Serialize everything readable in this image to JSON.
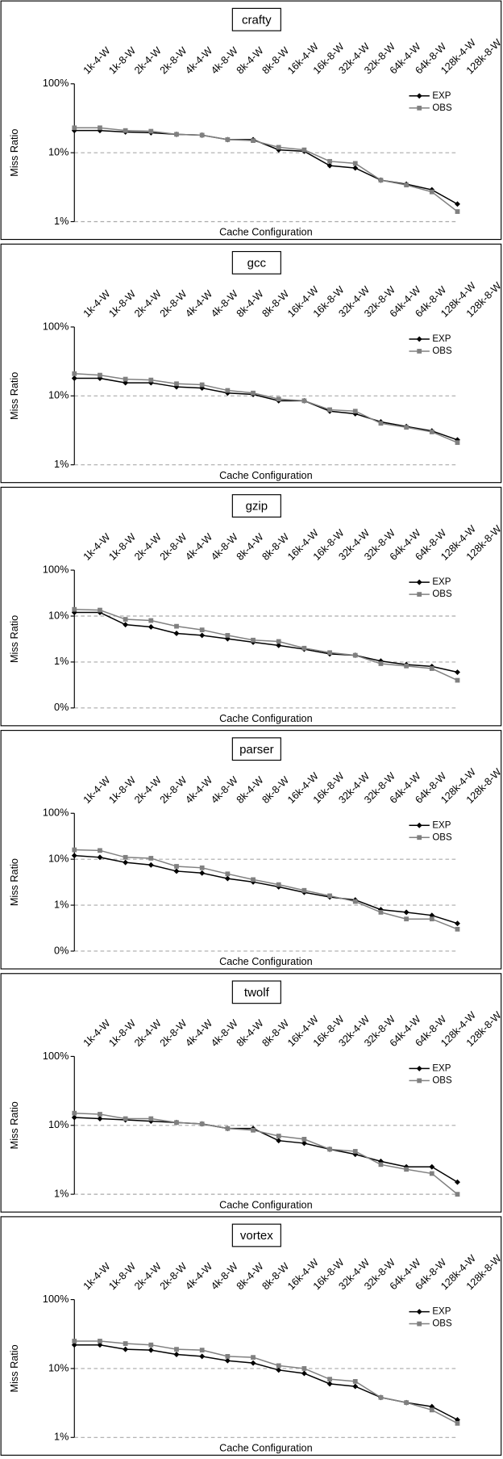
{
  "chart_data": [
    {
      "type": "line",
      "title": "crafty",
      "xlabel": "Cache Configuration",
      "ylabel": "Miss Ratio",
      "log_scale": true,
      "grid": true,
      "legend": "upper right",
      "categories": [
        "1k-4-W",
        "1k-8-W",
        "2k-4-W",
        "2k-8-W",
        "4k-4-W",
        "4k-8-W",
        "8k-4-W",
        "8k-8-W",
        "16k-4-W",
        "16k-8-W",
        "32k-4-W",
        "32k-8-W",
        "64k-4-W",
        "64k-8-W",
        "128k-4-W",
        "128k-8-W"
      ],
      "ylim": [
        1,
        100
      ],
      "yticks": [
        {
          "value": 1,
          "label": "1%"
        },
        {
          "value": 10,
          "label": "10%"
        },
        {
          "value": 100,
          "label": "100%"
        }
      ],
      "series": [
        {
          "name": "EXP",
          "color": "#000000",
          "values": [
            21,
            21,
            20,
            19.5,
            18.5,
            18,
            15.5,
            15.5,
            11,
            10.5,
            6.5,
            6,
            4,
            3.5,
            2.9,
            1.8
          ]
        },
        {
          "name": "OBS",
          "color": "#808080",
          "values": [
            23,
            23,
            21,
            20.5,
            18.5,
            18,
            15.5,
            15,
            12,
            11,
            7.5,
            7,
            4,
            3.4,
            2.7,
            1.4
          ]
        }
      ]
    },
    {
      "type": "line",
      "title": "gcc",
      "xlabel": "Cache Configuration",
      "ylabel": "Miss Ratio",
      "log_scale": true,
      "grid": true,
      "legend": "upper right",
      "categories": [
        "1k-4-W",
        "1k-8-W",
        "2k-4-W",
        "2k-8-W",
        "4k-4-W",
        "4k-8-W",
        "8k-4-W",
        "8k-8-W",
        "16k-4-W",
        "16k-8-W",
        "32k-4-W",
        "32k-8-W",
        "64k-4-W",
        "64k-8-W",
        "128k-4-W",
        "128k-8-W"
      ],
      "ylim": [
        1,
        100
      ],
      "yticks": [
        {
          "value": 1,
          "label": "1%"
        },
        {
          "value": 10,
          "label": "10%"
        },
        {
          "value": 100,
          "label": "100%"
        }
      ],
      "series": [
        {
          "name": "EXP",
          "color": "#000000",
          "values": [
            18,
            18,
            15.5,
            15.5,
            13.5,
            13,
            11,
            10.5,
            8.5,
            8.5,
            6,
            5.5,
            4.2,
            3.6,
            3.1,
            2.3
          ]
        },
        {
          "name": "OBS",
          "color": "#808080",
          "values": [
            21,
            20,
            17.5,
            17,
            15,
            14.5,
            12,
            11,
            9,
            8.5,
            6.3,
            6,
            4,
            3.5,
            3,
            2.1
          ]
        }
      ]
    },
    {
      "type": "line",
      "title": "gzip",
      "xlabel": "Cache Configuration",
      "ylabel": "Miss Ratio",
      "log_scale": true,
      "grid": true,
      "legend": "upper right",
      "categories": [
        "1k-4-W",
        "1k-8-W",
        "2k-4-W",
        "2k-8-W",
        "4k-4-W",
        "4k-8-W",
        "8k-4-W",
        "8k-8-W",
        "16k-4-W",
        "16k-8-W",
        "32k-4-W",
        "32k-8-W",
        "64k-4-W",
        "64k-8-W",
        "128k-4-W",
        "128k-8-W"
      ],
      "ylim": [
        0.1,
        100
      ],
      "yticks": [
        {
          "value": 0.1,
          "label": "0%"
        },
        {
          "value": 1,
          "label": "1%"
        },
        {
          "value": 10,
          "label": "10%"
        },
        {
          "value": 100,
          "label": "100%"
        }
      ],
      "series": [
        {
          "name": "EXP",
          "color": "#000000",
          "values": [
            12,
            12,
            6.5,
            5.8,
            4.2,
            3.8,
            3.2,
            2.7,
            2.3,
            1.9,
            1.5,
            1.4,
            1.05,
            0.88,
            0.8,
            0.6
          ]
        },
        {
          "name": "OBS",
          "color": "#808080",
          "values": [
            14,
            13.5,
            8.5,
            8,
            6,
            5,
            3.8,
            3,
            2.8,
            2,
            1.6,
            1.4,
            0.92,
            0.82,
            0.72,
            0.4
          ]
        }
      ]
    },
    {
      "type": "line",
      "title": "parser",
      "xlabel": "Cache Configuration",
      "ylabel": "Miss Ratio",
      "log_scale": true,
      "grid": true,
      "legend": "upper right",
      "categories": [
        "1k-4-W",
        "1k-8-W",
        "2k-4-W",
        "2k-8-W",
        "4k-4-W",
        "4k-8-W",
        "8k-4-W",
        "8k-8-W",
        "16k-4-W",
        "16k-8-W",
        "32k-4-W",
        "32k-8-W",
        "64k-4-W",
        "64k-8-W",
        "128k-4-W",
        "128k-8-W"
      ],
      "ylim": [
        0.1,
        100
      ],
      "yticks": [
        {
          "value": 0.1,
          "label": "0%"
        },
        {
          "value": 1,
          "label": "1%"
        },
        {
          "value": 10,
          "label": "10%"
        },
        {
          "value": 100,
          "label": "100%"
        }
      ],
      "series": [
        {
          "name": "EXP",
          "color": "#000000",
          "values": [
            12,
            11,
            8.5,
            7.5,
            5.5,
            5,
            3.8,
            3.2,
            2.5,
            1.9,
            1.5,
            1.3,
            0.8,
            0.7,
            0.6,
            0.4
          ]
        },
        {
          "name": "OBS",
          "color": "#808080",
          "values": [
            16,
            15.5,
            11,
            10.5,
            7,
            6.5,
            4.8,
            3.6,
            2.8,
            2.1,
            1.6,
            1.2,
            0.7,
            0.5,
            0.5,
            0.3
          ]
        }
      ]
    },
    {
      "type": "line",
      "title": "twolf",
      "xlabel": "Cache Configuration",
      "ylabel": "Miss Ratio",
      "log_scale": true,
      "grid": true,
      "legend": "upper right",
      "categories": [
        "1k-4-W",
        "1k-8-W",
        "2k-4-W",
        "2k-8-W",
        "4k-4-W",
        "4k-8-W",
        "8k-4-W",
        "8k-8-W",
        "16k-4-W",
        "16k-8-W",
        "32k-4-W",
        "32k-8-W",
        "64k-4-W",
        "64k-8-W",
        "128k-4-W",
        "128k-8-W"
      ],
      "ylim": [
        1,
        100
      ],
      "yticks": [
        {
          "value": 1,
          "label": "1%"
        },
        {
          "value": 10,
          "label": "10%"
        },
        {
          "value": 100,
          "label": "100%"
        }
      ],
      "series": [
        {
          "name": "EXP",
          "color": "#000000",
          "values": [
            13,
            12.5,
            12,
            11.5,
            11,
            10.5,
            9,
            9,
            6,
            5.5,
            4.5,
            3.8,
            3,
            2.5,
            2.5,
            1.5
          ]
        },
        {
          "name": "OBS",
          "color": "#808080",
          "values": [
            15,
            14.5,
            12.5,
            12.5,
            11,
            10.5,
            9,
            8.5,
            7,
            6.3,
            4.5,
            4.2,
            2.7,
            2.3,
            2,
            1
          ]
        }
      ]
    },
    {
      "type": "line",
      "title": "vortex",
      "xlabel": "Cache Configuration",
      "ylabel": "Miss Ratio",
      "log_scale": true,
      "grid": true,
      "legend": "upper right",
      "categories": [
        "1k-4-W",
        "1k-8-W",
        "2k-4-W",
        "2k-8-W",
        "4k-4-W",
        "4k-8-W",
        "8k-4-W",
        "8k-8-W",
        "16k-4-W",
        "16k-8-W",
        "32k-4-W",
        "32k-8-W",
        "64k-4-W",
        "64k-8-W",
        "128k-4-W",
        "128k-8-W"
      ],
      "ylim": [
        1,
        100
      ],
      "yticks": [
        {
          "value": 1,
          "label": "1%"
        },
        {
          "value": 10,
          "label": "10%"
        },
        {
          "value": 100,
          "label": "100%"
        }
      ],
      "series": [
        {
          "name": "EXP",
          "color": "#000000",
          "values": [
            22,
            22,
            19,
            18.5,
            16,
            15,
            13,
            12,
            9.5,
            8.5,
            6,
            5.5,
            3.8,
            3.2,
            2.8,
            1.8
          ]
        },
        {
          "name": "OBS",
          "color": "#808080",
          "values": [
            25,
            25,
            23,
            22,
            19,
            18.5,
            15,
            14.5,
            11,
            10,
            7,
            6.5,
            3.8,
            3.2,
            2.5,
            1.6
          ]
        }
      ]
    }
  ]
}
